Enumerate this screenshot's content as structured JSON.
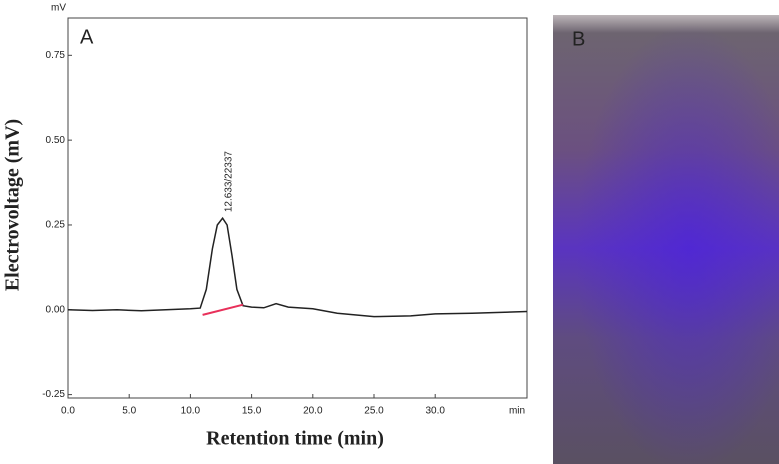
{
  "chart_data": {
    "type": "line",
    "panel_label": "A",
    "y_unit": "mV",
    "x_unit": "min",
    "xlabel": "Retention time (min)",
    "ylabel": "Electrovoltage (mV)",
    "xlim": [
      0,
      37.5
    ],
    "ylim": [
      -0.26,
      0.86
    ],
    "xticks": [
      {
        "value": 0,
        "label": "0.0"
      },
      {
        "value": 5,
        "label": "5.0"
      },
      {
        "value": 10,
        "label": "10.0"
      },
      {
        "value": 15,
        "label": "15.0"
      },
      {
        "value": 20,
        "label": "20.0"
      },
      {
        "value": 25,
        "label": "25.0"
      },
      {
        "value": 30,
        "label": "30.0"
      }
    ],
    "yticks": [
      {
        "value": -0.25,
        "label": "-0.25"
      },
      {
        "value": 0,
        "label": "0.00"
      },
      0.25,
      {
        "value": 0.5,
        "label": "0.50"
      },
      0.75
    ],
    "annotation": {
      "text": "12.633/22337",
      "x": 12.633,
      "y": 0.27
    },
    "series": [
      {
        "color": "#222222",
        "x": [
          0,
          2,
          4,
          6,
          8,
          10,
          10.8,
          11.3,
          11.8,
          12.2,
          12.633,
          13.0,
          13.4,
          13.8,
          14.3,
          15,
          16,
          17,
          18,
          20,
          22,
          25,
          28,
          30,
          33,
          35,
          37.5
        ],
        "values": [
          0,
          -0.002,
          0,
          -0.003,
          0,
          0.003,
          0.005,
          0.06,
          0.18,
          0.25,
          0.27,
          0.25,
          0.16,
          0.06,
          0.012,
          0.008,
          0.006,
          0.018,
          0.008,
          0.003,
          -0.01,
          -0.02,
          -0.018,
          -0.012,
          -0.01,
          -0.008,
          -0.005
        ]
      },
      {
        "color": "#e8305a",
        "x": [
          11,
          14.3
        ],
        "values": [
          -0.015,
          0.015
        ]
      }
    ]
  },
  "photo": {
    "panel_label": "B"
  }
}
